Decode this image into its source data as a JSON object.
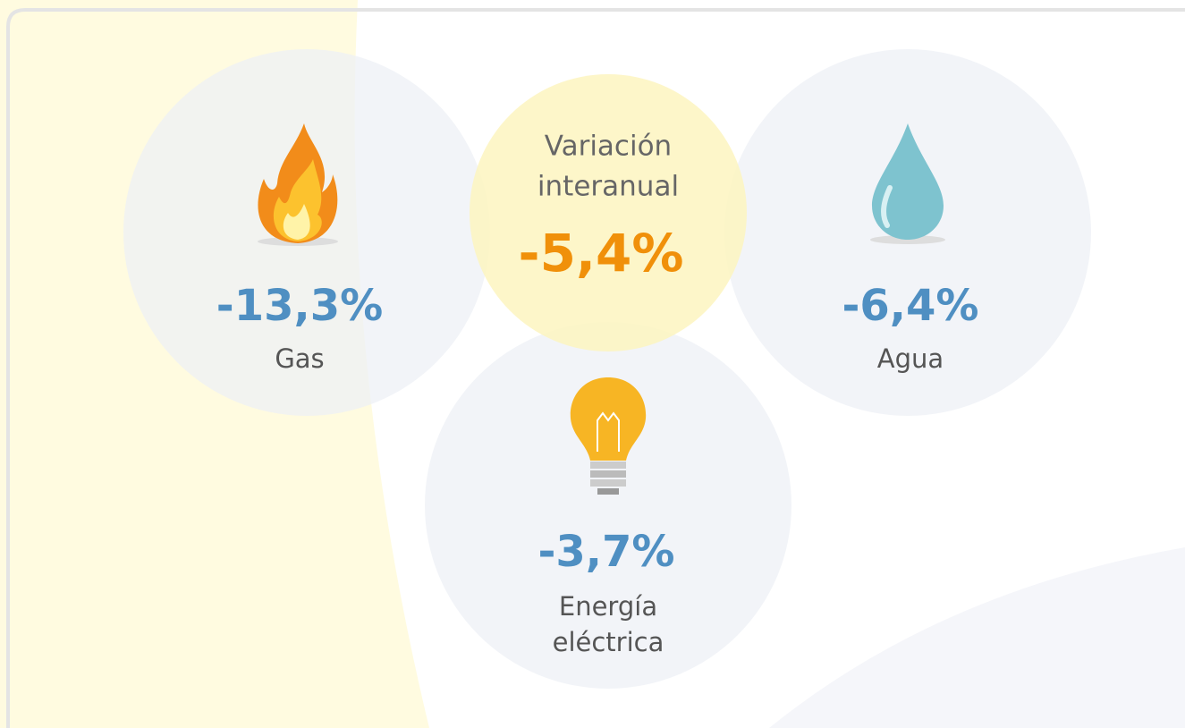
{
  "summary": {
    "title_lines": [
      "Variación",
      "interanual"
    ],
    "value": "-5,4%"
  },
  "items": [
    {
      "value": "-13,3%",
      "label_lines": [
        "Gas"
      ]
    },
    {
      "value": "-6,4%",
      "label_lines": [
        "Agua"
      ]
    },
    {
      "value": "-3,7%",
      "label_lines": [
        "Energía",
        "eléctrica"
      ]
    }
  ]
}
